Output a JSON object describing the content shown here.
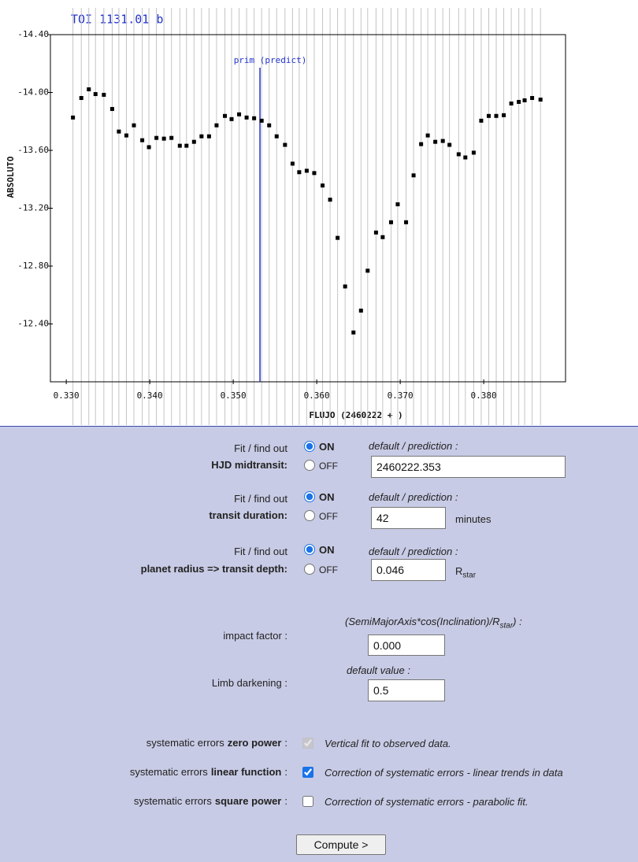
{
  "chart_data": {
    "type": "scatter",
    "title": "TOI 1131.01 b",
    "x_label": "FLUJO (2460222 + )",
    "y_label": "ABSOLUTO",
    "color": "#000000",
    "x": [
      0.3308,
      0.3318,
      0.3327,
      0.3335,
      0.3345,
      0.3355,
      0.3363,
      0.3372,
      0.3381,
      0.3391,
      0.3399,
      0.3408,
      0.3417,
      0.3426,
      0.3436,
      0.3444,
      0.3453,
      0.3462,
      0.3471,
      0.348,
      0.349,
      0.3498,
      0.3507,
      0.3516,
      0.3525,
      0.3534,
      0.3543,
      0.3552,
      0.3562,
      0.3571,
      0.3579,
      0.3588,
      0.3597,
      0.3607,
      0.3616,
      0.3625,
      0.3634,
      0.3644,
      0.3653,
      0.3661,
      0.3671,
      0.3679,
      0.3689,
      0.3697,
      0.3707,
      0.3716,
      0.3725,
      0.3733,
      0.3742,
      0.3751,
      0.3759,
      0.377,
      0.3778,
      0.3788,
      0.3797,
      0.3806,
      0.3815,
      0.3824,
      0.3833,
      0.3842,
      0.3849,
      0.3858,
      0.3868
    ],
    "values": [
      -13.827,
      -13.962,
      -14.022,
      -13.989,
      -13.984,
      -13.886,
      -13.73,
      -13.703,
      -13.773,
      -13.67,
      -13.622,
      -13.686,
      -13.681,
      -13.686,
      -13.632,
      -13.632,
      -13.659,
      -13.697,
      -13.697,
      -13.773,
      -13.838,
      -13.816,
      -13.849,
      -13.827,
      -13.822,
      -13.805,
      -13.773,
      -13.697,
      -13.638,
      -13.508,
      -13.449,
      -13.459,
      -13.443,
      -13.357,
      -13.259,
      -12.995,
      -12.659,
      -12.341,
      -12.492,
      -12.768,
      -13.032,
      -13.0,
      -13.103,
      -13.227,
      -13.103,
      -13.427,
      -13.643,
      -13.703,
      -13.659,
      -13.665,
      -13.638,
      -13.573,
      -13.551,
      -13.584,
      -13.805,
      -13.838,
      -13.838,
      -13.843,
      -13.924,
      -13.935,
      -13.946,
      -13.962,
      -13.951
    ],
    "xlim": [
      0.3281,
      0.3898
    ],
    "ylim": [
      -12.0,
      -14.4
    ],
    "xticks": [
      {
        "value": 0.33,
        "label": "0.330"
      },
      {
        "value": 0.34,
        "label": "0.340"
      },
      {
        "value": 0.35,
        "label": "0.350"
      },
      {
        "value": 0.36,
        "label": "0.360"
      },
      {
        "value": 0.37,
        "label": "0.370"
      },
      {
        "value": 0.38,
        "label": "0.380"
      }
    ],
    "yticks": [
      {
        "value": -14.4,
        "label": "-14.40"
      },
      {
        "value": -14.0,
        "label": "-14.00"
      },
      {
        "value": -13.6,
        "label": "-13.60"
      },
      {
        "value": -13.2,
        "label": "-13.20"
      },
      {
        "value": -12.8,
        "label": "-12.80"
      },
      {
        "value": -12.4,
        "label": "-12.40"
      }
    ],
    "annotation": {
      "label": "prim (predict)",
      "x": 0.3532,
      "color": "#2233cc"
    }
  },
  "form": {
    "fit_rows": [
      {
        "prefix": "Fit / find out",
        "label": "HJD midtransit:",
        "options": [
          "ON",
          "OFF"
        ],
        "selected": "ON",
        "hint": "default / prediction :",
        "value": "2460222.353"
      },
      {
        "prefix": "Fit / find out",
        "label": "transit duration:",
        "options": [
          "ON",
          "OFF"
        ],
        "selected": "ON",
        "hint": "default / prediction :",
        "value": "42",
        "unit": "minutes"
      },
      {
        "prefix": "Fit / find out",
        "label": "planet radius => transit depth:",
        "options": [
          "ON",
          "OFF"
        ],
        "selected": "ON",
        "hint": "default / prediction :",
        "value": "0.046",
        "unit": "R",
        "unit_sub": "star"
      }
    ],
    "impact": {
      "label": "impact factor :",
      "hint": "(SemiMajorAxis*cos(Inclination)/R",
      "hint_sub": "star",
      "hint_end": ") :",
      "value": "0.000"
    },
    "limb": {
      "label": "Limb darkening :",
      "hint": "default value :",
      "value": "0.5"
    },
    "systematics": [
      {
        "prefix": "systematic errors",
        "term": "zero power",
        "colon": ":",
        "checked": true,
        "disabled": true,
        "description": "Vertical fit to observed data."
      },
      {
        "prefix": "systematic errors",
        "term": "linear function",
        "colon": ":",
        "checked": true,
        "disabled": false,
        "description": "Correction of systematic errors - linear trends in data"
      },
      {
        "prefix": "systematic errors",
        "term": "square power",
        "colon": ":",
        "checked": false,
        "disabled": false,
        "description": "Correction of systematic errors - parabolic fit."
      }
    ],
    "button": "Compute >"
  }
}
